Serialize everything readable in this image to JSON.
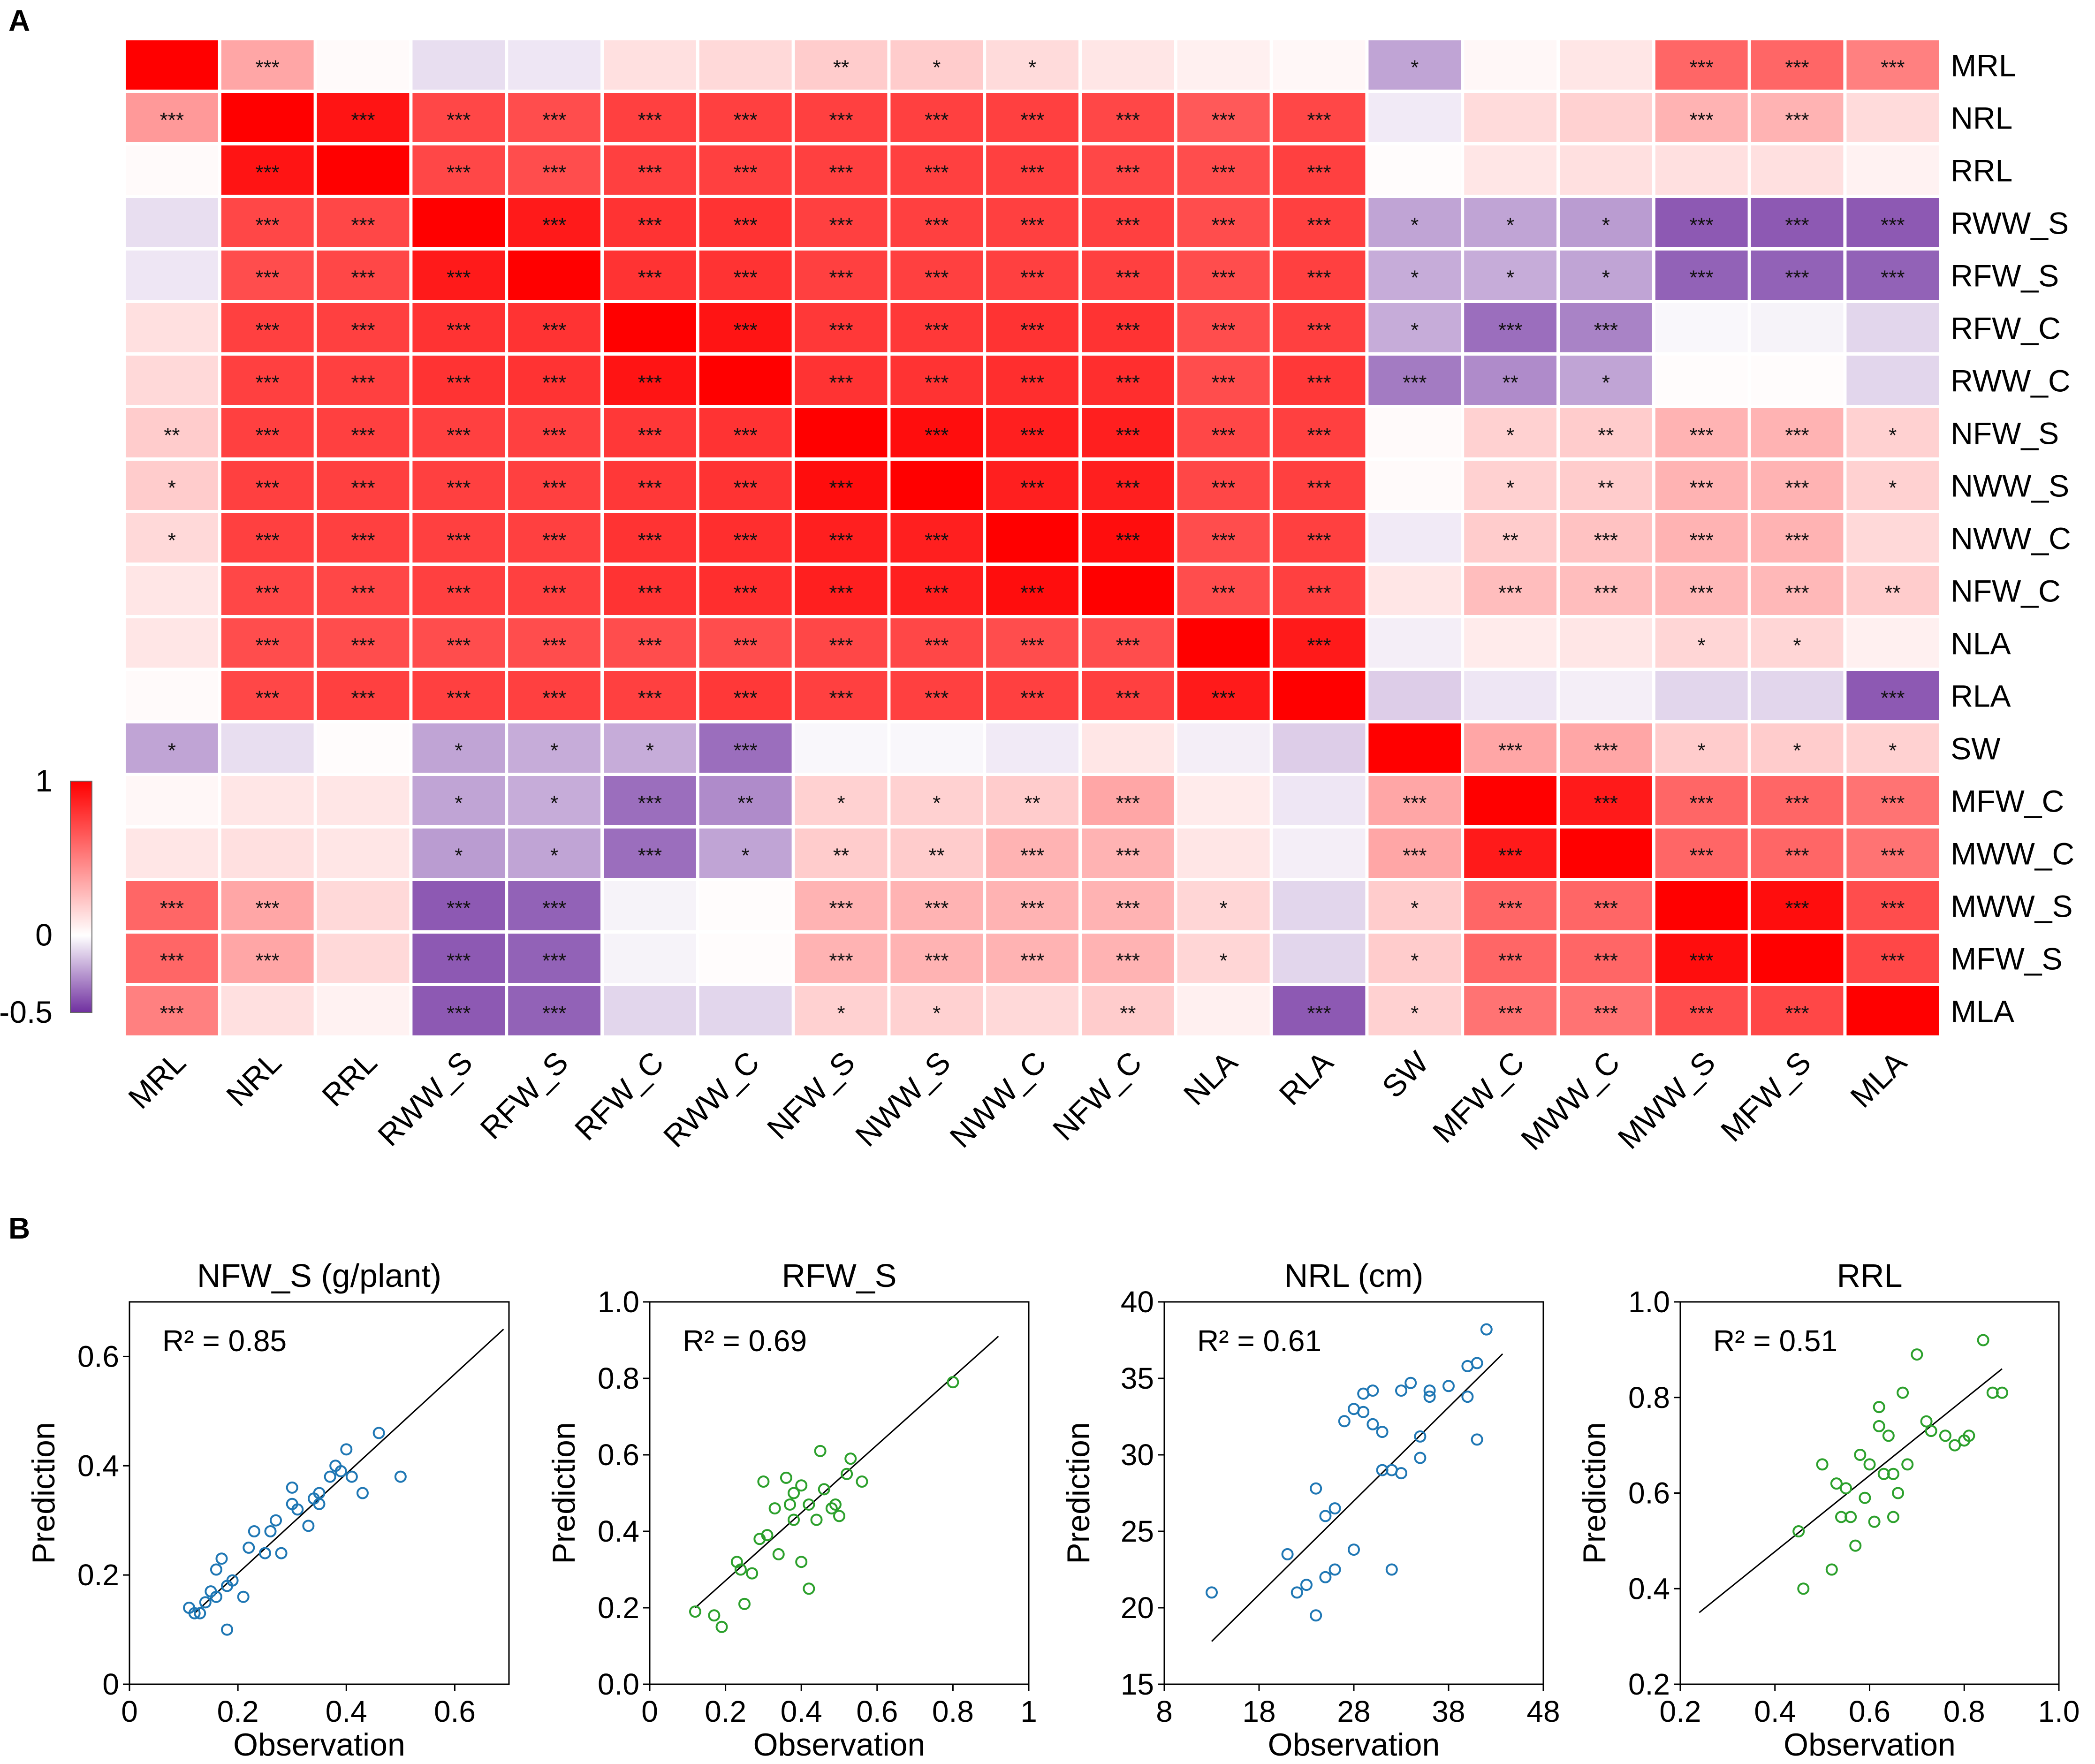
{
  "figure": {
    "panel_a_label": "A",
    "panel_b_label": "B"
  },
  "chart_data": [
    {
      "type": "heatmap",
      "title": "",
      "variables": [
        "MRL",
        "NRL",
        "RRL",
        "RWW_S",
        "RFW_S",
        "RFW_C",
        "RWW_C",
        "NFW_S",
        "NWW_S",
        "NWW_C",
        "NFW_C",
        "NLA",
        "RLA",
        "SW",
        "MFW_C",
        "MWW_C",
        "MWW_S",
        "MFW_S",
        "MLA"
      ],
      "values": [
        [
          1.0,
          0.35,
          0.02,
          -0.08,
          -0.06,
          0.12,
          0.15,
          0.2,
          0.2,
          0.14,
          0.1,
          0.06,
          0.03,
          -0.22,
          0.03,
          0.1,
          0.6,
          0.6,
          0.5
        ],
        [
          0.4,
          1.0,
          0.92,
          0.72,
          0.7,
          0.75,
          0.75,
          0.75,
          0.75,
          0.75,
          0.72,
          0.65,
          0.72,
          -0.05,
          0.14,
          0.18,
          0.3,
          0.3,
          0.14
        ],
        [
          0.02,
          0.92,
          1.0,
          0.72,
          0.7,
          0.75,
          0.75,
          0.75,
          0.75,
          0.75,
          0.72,
          0.7,
          0.75,
          0.01,
          0.1,
          0.12,
          0.12,
          0.12,
          0.05
        ],
        [
          -0.08,
          0.72,
          0.72,
          1.0,
          0.9,
          0.8,
          0.8,
          0.75,
          0.75,
          0.75,
          0.75,
          0.7,
          0.75,
          -0.22,
          -0.22,
          -0.24,
          -0.4,
          -0.4,
          -0.4
        ],
        [
          -0.06,
          0.7,
          0.72,
          0.9,
          1.0,
          0.8,
          0.8,
          0.75,
          0.75,
          0.75,
          0.75,
          0.7,
          0.75,
          -0.2,
          -0.2,
          -0.22,
          -0.38,
          -0.38,
          -0.38
        ],
        [
          0.12,
          0.75,
          0.75,
          0.8,
          0.8,
          1.0,
          0.92,
          0.78,
          0.78,
          0.8,
          0.8,
          0.7,
          0.75,
          -0.2,
          -0.35,
          -0.3,
          -0.02,
          -0.03,
          -0.1
        ],
        [
          0.15,
          0.75,
          0.75,
          0.8,
          0.8,
          0.92,
          1.0,
          0.8,
          0.8,
          0.82,
          0.82,
          0.7,
          0.78,
          -0.32,
          -0.28,
          -0.22,
          0.01,
          0.01,
          -0.1
        ],
        [
          0.2,
          0.75,
          0.75,
          0.75,
          0.75,
          0.78,
          0.8,
          1.0,
          0.95,
          0.88,
          0.88,
          0.72,
          0.75,
          0.02,
          0.18,
          0.2,
          0.3,
          0.3,
          0.18
        ],
        [
          0.2,
          0.75,
          0.75,
          0.75,
          0.75,
          0.78,
          0.8,
          0.95,
          1.0,
          0.88,
          0.88,
          0.72,
          0.75,
          0.02,
          0.18,
          0.2,
          0.3,
          0.3,
          0.18
        ],
        [
          0.15,
          0.75,
          0.75,
          0.75,
          0.75,
          0.8,
          0.82,
          0.88,
          0.88,
          1.0,
          0.95,
          0.7,
          0.75,
          -0.05,
          0.2,
          0.24,
          0.3,
          0.3,
          0.15
        ],
        [
          0.1,
          0.72,
          0.72,
          0.75,
          0.75,
          0.8,
          0.82,
          0.88,
          0.88,
          0.95,
          1.0,
          0.7,
          0.75,
          0.1,
          0.26,
          0.26,
          0.28,
          0.28,
          0.2
        ],
        [
          0.1,
          0.7,
          0.7,
          0.7,
          0.7,
          0.7,
          0.7,
          0.72,
          0.72,
          0.7,
          0.7,
          1.0,
          0.9,
          -0.04,
          0.08,
          0.1,
          0.16,
          0.16,
          0.06
        ],
        [
          0.02,
          0.72,
          0.75,
          0.75,
          0.75,
          0.75,
          0.78,
          0.75,
          0.75,
          0.75,
          0.75,
          0.9,
          1.0,
          -0.12,
          -0.06,
          -0.04,
          -0.1,
          -0.1,
          -0.4
        ],
        [
          -0.22,
          -0.08,
          0.01,
          -0.22,
          -0.2,
          -0.2,
          -0.35,
          -0.02,
          -0.02,
          -0.05,
          0.1,
          -0.04,
          -0.12,
          1.0,
          0.35,
          0.35,
          0.2,
          0.2,
          0.18
        ],
        [
          0.03,
          0.1,
          0.1,
          -0.22,
          -0.2,
          -0.35,
          -0.28,
          0.18,
          0.18,
          0.2,
          0.35,
          0.08,
          -0.06,
          0.35,
          1.0,
          0.9,
          0.6,
          0.6,
          0.55
        ],
        [
          0.1,
          0.12,
          0.1,
          -0.24,
          -0.22,
          -0.35,
          -0.22,
          0.2,
          0.2,
          0.3,
          0.3,
          0.1,
          -0.04,
          0.35,
          0.9,
          1.0,
          0.6,
          0.6,
          0.55
        ],
        [
          0.6,
          0.35,
          0.15,
          -0.4,
          -0.38,
          -0.03,
          0.01,
          0.3,
          0.3,
          0.3,
          0.3,
          0.16,
          -0.1,
          0.2,
          0.6,
          0.6,
          1.0,
          0.95,
          0.7
        ],
        [
          0.6,
          0.35,
          0.15,
          -0.4,
          -0.38,
          -0.03,
          0.01,
          0.3,
          0.3,
          0.3,
          0.3,
          0.16,
          -0.1,
          0.2,
          0.6,
          0.6,
          0.95,
          1.0,
          0.72
        ],
        [
          0.5,
          0.12,
          0.05,
          -0.4,
          -0.38,
          -0.1,
          -0.1,
          0.18,
          0.18,
          0.15,
          0.2,
          0.06,
          -0.4,
          0.18,
          0.55,
          0.55,
          0.7,
          0.72,
          1.0
        ]
      ],
      "significance": [
        [
          "",
          "***",
          "",
          "",
          "",
          "",
          "",
          "**",
          "*",
          "*",
          "",
          "",
          "",
          "*",
          "",
          "",
          "***",
          "***",
          "***"
        ],
        [
          "***",
          "",
          "***",
          "***",
          "***",
          "***",
          "***",
          "***",
          "***",
          "***",
          "***",
          "***",
          "***",
          "",
          "",
          "",
          "***",
          "***",
          ""
        ],
        [
          "",
          "***",
          "",
          "***",
          "***",
          "***",
          "***",
          "***",
          "***",
          "***",
          "***",
          "***",
          "***",
          "",
          "",
          "",
          "",
          "",
          ""
        ],
        [
          "",
          "***",
          "***",
          "",
          "***",
          "***",
          "***",
          "***",
          "***",
          "***",
          "***",
          "***",
          "***",
          "*",
          "*",
          "*",
          "***",
          "***",
          "***"
        ],
        [
          "",
          "***",
          "***",
          "***",
          "",
          "***",
          "***",
          "***",
          "***",
          "***",
          "***",
          "***",
          "***",
          "*",
          "*",
          "*",
          "***",
          "***",
          "***"
        ],
        [
          "",
          "***",
          "***",
          "***",
          "***",
          "",
          "***",
          "***",
          "***",
          "***",
          "***",
          "***",
          "***",
          "*",
          "***",
          "***",
          "",
          "",
          ""
        ],
        [
          "",
          "***",
          "***",
          "***",
          "***",
          "***",
          "",
          "***",
          "***",
          "***",
          "***",
          "***",
          "***",
          "***",
          "**",
          "*",
          "",
          "",
          ""
        ],
        [
          "**",
          "***",
          "***",
          "***",
          "***",
          "***",
          "***",
          "",
          "***",
          "***",
          "***",
          "***",
          "***",
          "",
          "*",
          "**",
          "***",
          "***",
          "*"
        ],
        [
          "*",
          "***",
          "***",
          "***",
          "***",
          "***",
          "***",
          "***",
          "",
          "***",
          "***",
          "***",
          "***",
          "",
          "*",
          "**",
          "***",
          "***",
          "*"
        ],
        [
          "*",
          "***",
          "***",
          "***",
          "***",
          "***",
          "***",
          "***",
          "***",
          "",
          "***",
          "***",
          "***",
          "",
          "**",
          "***",
          "***",
          "***",
          ""
        ],
        [
          "",
          "***",
          "***",
          "***",
          "***",
          "***",
          "***",
          "***",
          "***",
          "***",
          "",
          "***",
          "***",
          "",
          "***",
          "***",
          "***",
          "***",
          "**"
        ],
        [
          "",
          "***",
          "***",
          "***",
          "***",
          "***",
          "***",
          "***",
          "***",
          "***",
          "***",
          "",
          "***",
          "",
          "",
          "",
          "*",
          "*",
          ""
        ],
        [
          "",
          "***",
          "***",
          "***",
          "***",
          "***",
          "***",
          "***",
          "***",
          "***",
          "***",
          "***",
          "",
          "",
          "",
          "",
          "",
          "",
          "***"
        ],
        [
          "*",
          "",
          "",
          "*",
          "*",
          "*",
          "***",
          "",
          "",
          "",
          "",
          "",
          "",
          "",
          "***",
          "***",
          "*",
          "*",
          "*"
        ],
        [
          "",
          "",
          "",
          "*",
          "*",
          "***",
          "**",
          "*",
          "*",
          "**",
          "***",
          "",
          "",
          "***",
          "",
          "***",
          "***",
          "***",
          "***"
        ],
        [
          "",
          "",
          "",
          "*",
          "*",
          "***",
          "*",
          "**",
          "**",
          "***",
          "***",
          "",
          "",
          "***",
          "***",
          "",
          "***",
          "***",
          "***"
        ],
        [
          "***",
          "***",
          "",
          "***",
          "***",
          "",
          "",
          "***",
          "***",
          "***",
          "***",
          "*",
          "",
          "*",
          "***",
          "***",
          "",
          "***",
          "***"
        ],
        [
          "***",
          "***",
          "",
          "***",
          "***",
          "",
          "",
          "***",
          "***",
          "***",
          "***",
          "*",
          "",
          "*",
          "***",
          "***",
          "***",
          "",
          "***"
        ],
        [
          "***",
          "",
          "",
          "***",
          "***",
          "",
          "",
          "*",
          "*",
          "",
          "**",
          "",
          "***",
          "*",
          "***",
          "***",
          "***",
          "***",
          ""
        ]
      ],
      "colorbar": {
        "ticks": [
          "1",
          "0",
          "-0.5"
        ],
        "min": -0.5,
        "max": 1,
        "colors": {
          "positive": "#ff0000",
          "zero": "#ffffff",
          "negative": "#7030a0"
        }
      }
    },
    {
      "type": "scatter",
      "title": "NFW_S (g/plant)",
      "xlabel": "Observation",
      "ylabel": "Prediction",
      "xlim": [
        0,
        0.7
      ],
      "ylim": [
        0,
        0.7
      ],
      "xticks": [
        "0",
        "0.2",
        "0.4",
        "0.6"
      ],
      "yticks": [
        "0",
        "0.2",
        "0.4",
        "0.6"
      ],
      "annotation": "R² = 0.85",
      "marker_color": "#1f77b4",
      "fit_line": [
        [
          0.12,
          0.13
        ],
        [
          0.69,
          0.65
        ]
      ],
      "x": [
        0.11,
        0.12,
        0.13,
        0.14,
        0.15,
        0.16,
        0.17,
        0.18,
        0.18,
        0.21,
        0.22,
        0.23,
        0.25,
        0.26,
        0.27,
        0.28,
        0.3,
        0.31,
        0.33,
        0.34,
        0.35,
        0.37,
        0.38,
        0.39,
        0.4,
        0.41,
        0.43,
        0.46,
        0.5,
        0.35,
        0.16,
        0.19,
        0.3
      ],
      "y": [
        0.14,
        0.13,
        0.13,
        0.15,
        0.17,
        0.16,
        0.23,
        0.1,
        0.18,
        0.16,
        0.25,
        0.28,
        0.24,
        0.28,
        0.3,
        0.24,
        0.33,
        0.32,
        0.29,
        0.34,
        0.33,
        0.38,
        0.4,
        0.39,
        0.43,
        0.38,
        0.35,
        0.46,
        0.38,
        0.35,
        0.21,
        0.19,
        0.36
      ]
    },
    {
      "type": "scatter",
      "title": "RFW_S",
      "xlabel": "Observation",
      "ylabel": "Prediction",
      "xlim": [
        0,
        1
      ],
      "ylim": [
        0,
        1
      ],
      "xticks": [
        "0",
        "0.2",
        "0.4",
        "0.6",
        "0.8",
        "1"
      ],
      "yticks": [
        "0.0",
        "0.2",
        "0.4",
        "0.6",
        "0.8",
        "1.0"
      ],
      "annotation": "R² = 0.69",
      "marker_color": "#2ca02c",
      "fit_line": [
        [
          0.12,
          0.2
        ],
        [
          0.92,
          0.91
        ]
      ],
      "x": [
        0.12,
        0.17,
        0.19,
        0.23,
        0.24,
        0.25,
        0.29,
        0.3,
        0.31,
        0.33,
        0.34,
        0.36,
        0.37,
        0.38,
        0.4,
        0.4,
        0.42,
        0.44,
        0.45,
        0.46,
        0.48,
        0.49,
        0.5,
        0.52,
        0.53,
        0.56,
        0.8,
        0.38,
        0.27,
        0.42
      ],
      "y": [
        0.19,
        0.18,
        0.15,
        0.32,
        0.3,
        0.21,
        0.38,
        0.53,
        0.39,
        0.46,
        0.34,
        0.54,
        0.47,
        0.43,
        0.52,
        0.32,
        0.25,
        0.43,
        0.61,
        0.51,
        0.46,
        0.47,
        0.44,
        0.55,
        0.59,
        0.53,
        0.79,
        0.5,
        0.29,
        0.47
      ]
    },
    {
      "type": "scatter",
      "title": "NRL (cm)",
      "xlabel": "Observation",
      "ylabel": "Prediction",
      "xlim": [
        8,
        48
      ],
      "ylim": [
        15,
        40
      ],
      "xticks": [
        "8",
        "18",
        "28",
        "38",
        "48"
      ],
      "yticks": [
        "15",
        "20",
        "25",
        "30",
        "35",
        "40"
      ],
      "annotation": "R² = 0.61",
      "marker_color": "#1f77b4",
      "fit_line": [
        [
          13,
          17.8
        ],
        [
          43.7,
          36.6
        ]
      ],
      "x": [
        13,
        21,
        22,
        23,
        24,
        24,
        25,
        25,
        26,
        26,
        27,
        28,
        28,
        29,
        29,
        30,
        30,
        31,
        31,
        32,
        32,
        33,
        33,
        34,
        35,
        35,
        36,
        36,
        38,
        40,
        40,
        41,
        41,
        42
      ],
      "y": [
        21,
        23.5,
        21,
        21.5,
        19.5,
        27.8,
        26,
        22,
        22.5,
        26.5,
        32.2,
        33,
        23.8,
        32.8,
        34,
        34.2,
        32,
        29,
        31.5,
        29,
        22.5,
        28.8,
        34.2,
        34.7,
        31.2,
        29.8,
        34.2,
        33.8,
        34.5,
        33.8,
        35.8,
        31,
        36,
        38.2
      ]
    },
    {
      "type": "scatter",
      "title": "RRL",
      "xlabel": "Observation",
      "ylabel": "Prediction",
      "xlim": [
        0.2,
        1.0
      ],
      "ylim": [
        0.2,
        1.0
      ],
      "xticks": [
        "0.2",
        "0.4",
        "0.6",
        "0.8",
        "1.0"
      ],
      "yticks": [
        "0.2",
        "0.4",
        "0.6",
        "0.8",
        "1.0"
      ],
      "annotation": "R² = 0.51",
      "marker_color": "#2ca02c",
      "fit_line": [
        [
          0.24,
          0.35
        ],
        [
          0.88,
          0.86
        ]
      ],
      "x": [
        0.45,
        0.46,
        0.5,
        0.52,
        0.53,
        0.54,
        0.55,
        0.57,
        0.58,
        0.59,
        0.6,
        0.61,
        0.62,
        0.62,
        0.63,
        0.64,
        0.65,
        0.66,
        0.67,
        0.68,
        0.7,
        0.72,
        0.73,
        0.76,
        0.78,
        0.8,
        0.81,
        0.84,
        0.86,
        0.88,
        0.56,
        0.65
      ],
      "y": [
        0.52,
        0.4,
        0.66,
        0.44,
        0.62,
        0.55,
        0.61,
        0.49,
        0.68,
        0.59,
        0.66,
        0.54,
        0.74,
        0.78,
        0.64,
        0.72,
        0.55,
        0.6,
        0.81,
        0.66,
        0.89,
        0.75,
        0.73,
        0.72,
        0.7,
        0.71,
        0.72,
        0.92,
        0.81,
        0.81,
        0.55,
        0.64
      ]
    }
  ]
}
